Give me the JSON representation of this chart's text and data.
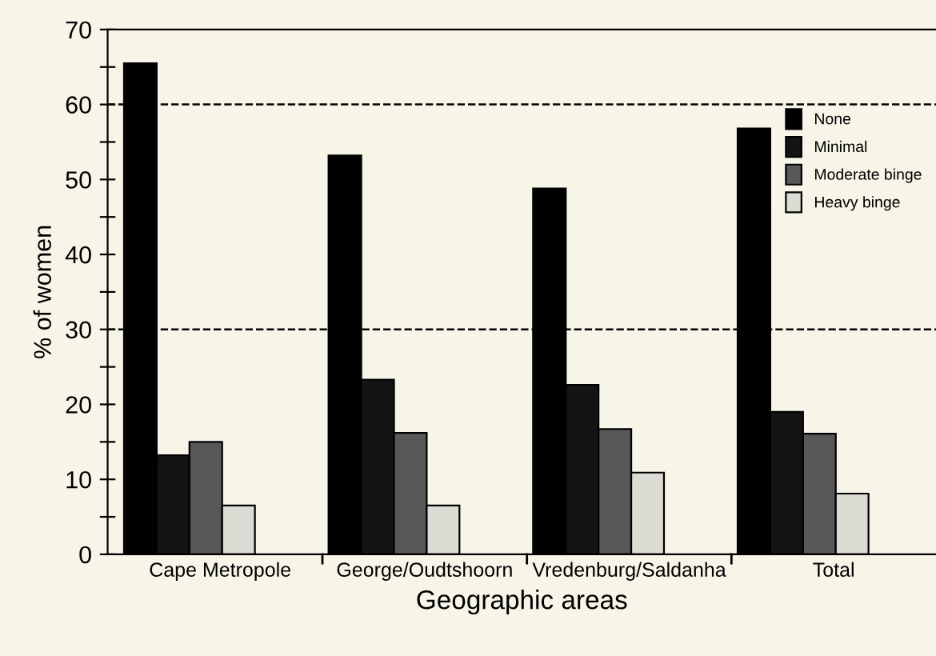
{
  "chart_data": {
    "type": "bar",
    "xlabel": "Geographic areas",
    "ylabel": "% of women",
    "categories": [
      "Cape Metropole",
      "George/Oudtshoorn",
      "Vredenburg/Saldanha",
      "Total"
    ],
    "series": [
      {
        "name": "None",
        "color": "#000000",
        "values": [
          65.5,
          53.2,
          48.8,
          56.8
        ]
      },
      {
        "name": "Minimal",
        "color": "#141414",
        "values": [
          13.2,
          23.3,
          22.6,
          19
        ]
      },
      {
        "name": "Moderate binge",
        "color": "#585858",
        "values": [
          15,
          16.2,
          16.7,
          16.1
        ]
      },
      {
        "name": "Heavy binge",
        "color": "#dcdcd4",
        "values": [
          6.5,
          6.5,
          10.9,
          8.1
        ]
      }
    ],
    "ylim": [
      0,
      70
    ],
    "yticks": [
      0,
      {
        "value": 5,
        "label": null
      },
      10,
      {
        "value": 15,
        "label": null
      },
      20,
      {
        "value": 25,
        "label": null
      },
      30,
      {
        "value": 35,
        "label": null
      },
      40,
      {
        "value": 45,
        "label": null
      },
      50,
      {
        "value": 55,
        "label": null
      },
      60,
      {
        "value": 65,
        "label": null
      },
      70
    ],
    "ref_lines": [
      {
        "axis": "y",
        "value": 30,
        "line_style": "dashed",
        "color": "#000000"
      },
      {
        "axis": "y",
        "value": 60,
        "line_style": "dashed",
        "color": "#000000"
      }
    ],
    "grid": false,
    "legend": "right"
  }
}
